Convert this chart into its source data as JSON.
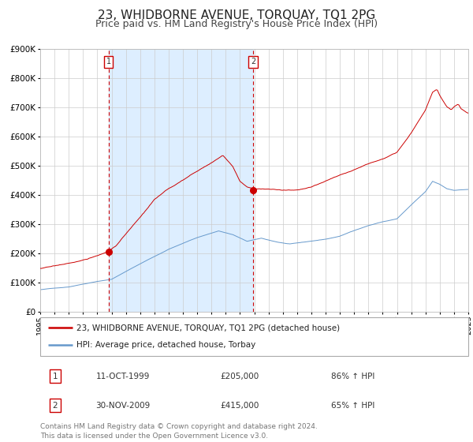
{
  "title": "23, WHIDBORNE AVENUE, TORQUAY, TQ1 2PG",
  "subtitle": "Price paid vs. HM Land Registry's House Price Index (HPI)",
  "red_label": "23, WHIDBORNE AVENUE, TORQUAY, TQ1 2PG (detached house)",
  "blue_label": "HPI: Average price, detached house, Torbay",
  "transaction1_date": "11-OCT-1999",
  "transaction1_price": "£205,000",
  "transaction1_hpi": "86% ↑ HPI",
  "transaction2_date": "30-NOV-2009",
  "transaction2_price": "£415,000",
  "transaction2_hpi": "65% ↑ HPI",
  "transaction1_year": 1999.78,
  "transaction2_year": 2009.92,
  "transaction1_red_val": 205000,
  "transaction2_red_val": 415000,
  "xmin": 1995,
  "xmax": 2025,
  "ymin": 0,
  "ymax": 900000,
  "yticks": [
    0,
    100000,
    200000,
    300000,
    400000,
    500000,
    600000,
    700000,
    800000,
    900000
  ],
  "red_color": "#cc0000",
  "blue_color": "#6699cc",
  "shade_color": "#ddeeff",
  "grid_color": "#cccccc",
  "vline_color": "#cc0000",
  "footer_text": "Contains HM Land Registry data © Crown copyright and database right 2024.\nThis data is licensed under the Open Government Licence v3.0.",
  "title_fontsize": 11,
  "subtitle_fontsize": 9,
  "axis_fontsize": 7.5,
  "legend_fontsize": 8,
  "table_fontsize": 8,
  "footer_fontsize": 6.5
}
